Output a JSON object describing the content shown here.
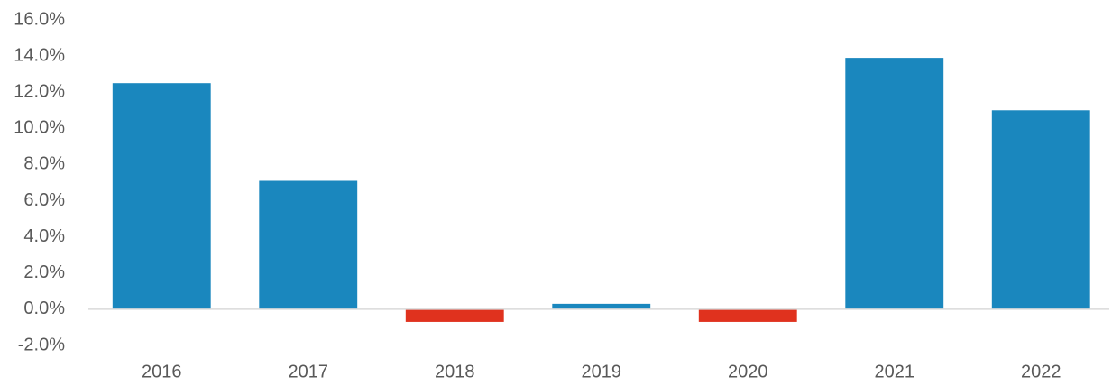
{
  "chart_data": {
    "type": "bar",
    "categories": [
      "2016",
      "2017",
      "2018",
      "2019",
      "2020",
      "2021",
      "2022"
    ],
    "values": [
      12.5,
      7.1,
      -0.7,
      0.3,
      -0.7,
      13.9,
      11.0
    ],
    "colors": [
      "#1a87be",
      "#1a87be",
      "#e0321e",
      "#1a87be",
      "#e0321e",
      "#1a87be",
      "#1a87be"
    ],
    "ylim": [
      -2,
      16
    ],
    "yticks": [
      {
        "value": -2,
        "label": "-2.0%"
      },
      {
        "value": 0,
        "label": "0.0%"
      },
      {
        "value": 2,
        "label": "2.0%"
      },
      {
        "value": 4,
        "label": "4.0%"
      },
      {
        "value": 6,
        "label": "6.0%"
      },
      {
        "value": 8,
        "label": "8.0%"
      },
      {
        "value": 10,
        "label": "10.0%"
      },
      {
        "value": 12,
        "label": "12.0%"
      },
      {
        "value": 14,
        "label": "14.0%"
      },
      {
        "value": 16,
        "label": "16.0%"
      }
    ],
    "grid": false
  }
}
